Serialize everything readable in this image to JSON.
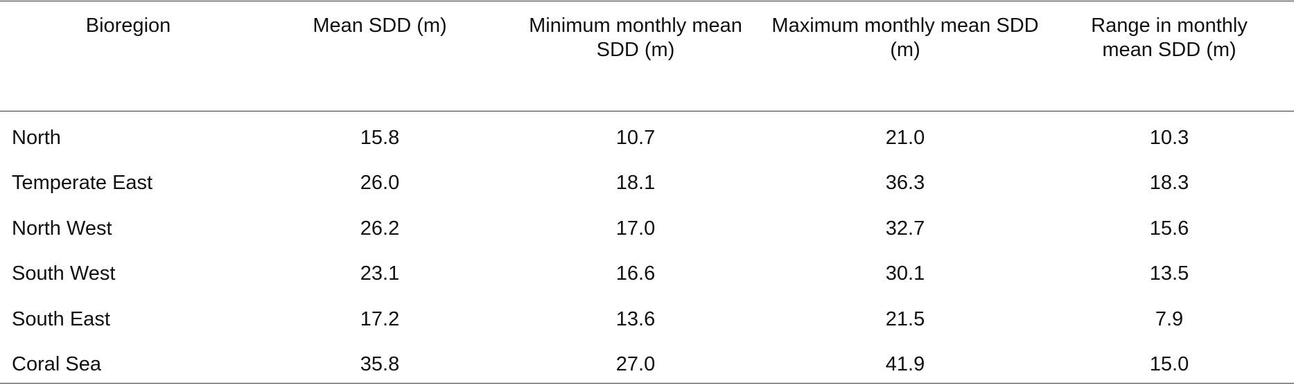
{
  "table": {
    "header": [
      "Bioregion",
      "Mean SDD (m)",
      "Minimum monthly mean SDD (m)",
      "Maximum monthly mean SDD (m)",
      "Range in monthly mean SDD (m)"
    ],
    "rows": [
      [
        "North",
        "15.8",
        "10.7",
        "21.0",
        "10.3"
      ],
      [
        "Temperate East",
        "26.0",
        "18.1",
        "36.3",
        "18.3"
      ],
      [
        "North West",
        "26.2",
        "17.0",
        "32.7",
        "15.6"
      ],
      [
        "South West",
        "23.1",
        "16.6",
        "30.1",
        "13.5"
      ],
      [
        "South East",
        "17.2",
        "13.6",
        "21.5",
        "7.9"
      ],
      [
        "Coral Sea",
        "35.8",
        "27.0",
        "41.9",
        "15.0"
      ]
    ]
  }
}
